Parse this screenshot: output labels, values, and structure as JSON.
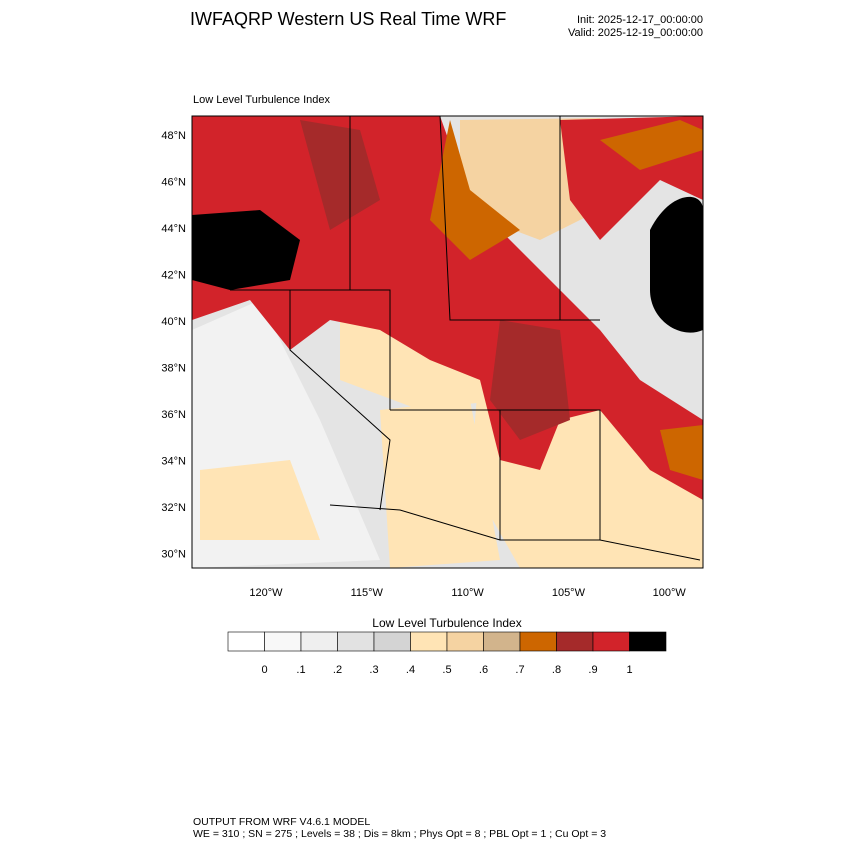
{
  "header": {
    "title": "IWFAQRP Western US Real Time WRF",
    "init": "Init: 2025-12-17_00:00:00",
    "valid": "Valid: 2025-12-19_00:00:00"
  },
  "map": {
    "subtitle": "Low Level Turbulence Index",
    "lat_labels": [
      "48°N",
      "46°N",
      "44°N",
      "42°N",
      "40°N",
      "38°N",
      "36°N",
      "34°N",
      "32°N",
      "30°N"
    ],
    "lon_labels": [
      "120°W",
      "115°W",
      "110°W",
      "105°W",
      "100°W"
    ]
  },
  "colorbar": {
    "title": "Low Level Turbulence Index",
    "colors": [
      "#ffffff",
      "#f8f8f8",
      "#efefef",
      "#e2e2e2",
      "#d4d4d4",
      "#ffe4b5",
      "#f5d3a2",
      "#d2b48c",
      "#cd6600",
      "#a52a2a",
      "#d2232a",
      "#000000"
    ],
    "labels": [
      "0",
      ".1",
      ".2",
      ".3",
      ".4",
      ".5",
      ".6",
      ".7",
      ".8",
      ".9",
      "1"
    ]
  },
  "footer": {
    "line1": "OUTPUT FROM WRF V4.6.1 MODEL",
    "line2": "WE = 310 ; SN = 275 ; Levels = 38 ; Dis = 8km ; Phys Opt = 8 ; PBL Opt = 1 ; Cu Opt = 3"
  }
}
